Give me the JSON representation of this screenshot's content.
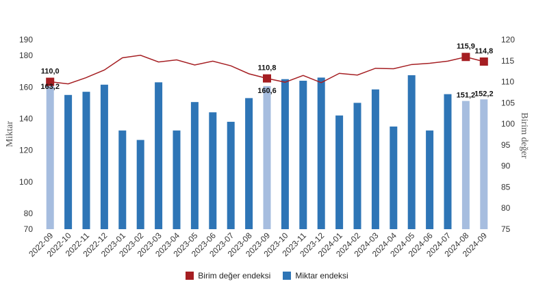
{
  "chart_data": {
    "type": "bar",
    "categories": [
      "2022-09",
      "2022-10",
      "2022-11",
      "2022-12",
      "2023-01",
      "2023-02",
      "2023-03",
      "2023-04",
      "2023-05",
      "2023-06",
      "2023-07",
      "2023-08",
      "2023-09",
      "2023-10",
      "2023-11",
      "2023-12",
      "2024-01",
      "2024-02",
      "2024-03",
      "2024-04",
      "2024-05",
      "2024-06",
      "2024-07",
      "2024-08",
      "2024-09"
    ],
    "left_axis": {
      "label": "Miktar",
      "ticks": [
        70,
        80,
        100,
        120,
        140,
        160,
        180,
        190
      ],
      "ylim": [
        70,
        190
      ]
    },
    "right_axis": {
      "label": "Birim değer",
      "ticks": [
        75,
        80,
        85,
        90,
        95,
        100,
        105,
        110,
        115,
        120
      ],
      "ylim": [
        75,
        120
      ]
    },
    "series": [
      {
        "name": "Miktar endeksi",
        "type": "bar",
        "axis": "left",
        "color": "#2e75b6",
        "highlight_color": "#a6bddf",
        "highlight_indices": [
          0,
          12,
          23,
          24
        ],
        "values": [
          163.2,
          155,
          157,
          161.5,
          132.5,
          126.5,
          163,
          132.5,
          150.5,
          144,
          138,
          153,
          160.6,
          165,
          164,
          166,
          142,
          150,
          158.5,
          135,
          167.5,
          132.5,
          155.5,
          151.2,
          152.2
        ],
        "data_labels": {
          "0": "163,2",
          "12": "160,6",
          "23": "151,2",
          "24": "152,2"
        }
      },
      {
        "name": "Birim değer endeksi",
        "type": "line",
        "axis": "right",
        "color": "#a51e22",
        "marker_indices": [
          0,
          12,
          23,
          24
        ],
        "values": [
          110.0,
          109.5,
          111.0,
          112.8,
          115.7,
          116.3,
          114.7,
          115.2,
          114.0,
          114.9,
          113.8,
          111.9,
          110.8,
          109.9,
          111.5,
          109.8,
          112.0,
          111.6,
          113.2,
          113.1,
          114.1,
          114.4,
          114.9,
          115.9,
          114.8
        ],
        "data_labels": {
          "0": "110,0",
          "12": "110,8",
          "23": "115,9",
          "24": "114,8"
        }
      }
    ],
    "legend": {
      "placement": "bottom"
    },
    "grid": false
  }
}
